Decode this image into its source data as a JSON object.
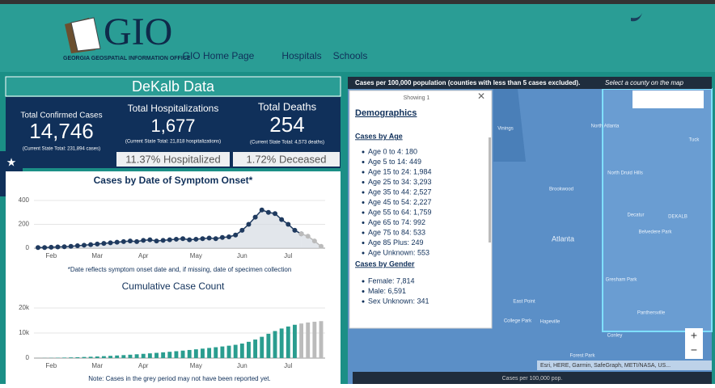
{
  "header": {
    "logo": "GIO",
    "logo_subtitle": "GEORGIA GEOSPATIAL INFORMATION OFFICE",
    "nav": [
      "GIO Home Page",
      "Hospitals",
      "Schools"
    ]
  },
  "panel": {
    "title": "DeKalb Data",
    "stats": [
      {
        "label": "Total Confirmed Cases",
        "value": "14,746",
        "note": "(Current State Total: 231,894 cases)"
      },
      {
        "label": "Total Hospitalizations",
        "value": "1,677",
        "note": "(Current State Total: 21,818 hospitalizations)"
      },
      {
        "label": "Total Deaths",
        "value": "254",
        "note": "(Current State Total: 4,573 deaths)"
      }
    ],
    "rates": [
      "11.37% Hospitalized",
      "1.72% Deceased"
    ]
  },
  "chart_data": [
    {
      "type": "line",
      "title": "Cases by Date of Symptom Onset*",
      "footnote": "*Date reflects symptom onset date and, if missing, date of specimen collection",
      "categories": [
        null,
        null,
        "Feb",
        null,
        null,
        null,
        null,
        null,
        null,
        "Mar",
        null,
        null,
        null,
        null,
        null,
        null,
        "Apr",
        null,
        null,
        null,
        null,
        null,
        null,
        null,
        "May",
        null,
        null,
        null,
        null,
        null,
        null,
        "Jun",
        null,
        null,
        null,
        null,
        null,
        null,
        "Jul",
        null,
        null,
        null,
        null,
        null
      ],
      "series": [
        {
          "color": "#1f3a5f",
          "values": [
            5,
            5,
            8,
            10,
            12,
            15,
            20,
            25,
            30,
            35,
            40,
            45,
            50,
            55,
            60,
            55,
            65,
            70,
            60,
            65,
            70,
            75,
            80,
            70,
            75,
            80,
            85,
            80,
            90,
            95,
            110,
            150,
            200,
            260,
            320,
            300,
            290,
            240,
            200,
            150,
            120,
            null,
            null,
            null
          ]
        },
        {
          "color": "#bbbbbb",
          "values": [
            null,
            null,
            null,
            null,
            null,
            null,
            null,
            null,
            null,
            null,
            null,
            null,
            null,
            null,
            null,
            null,
            null,
            null,
            null,
            null,
            null,
            null,
            null,
            null,
            null,
            null,
            null,
            null,
            null,
            null,
            null,
            null,
            null,
            null,
            null,
            null,
            null,
            null,
            null,
            null,
            120,
            100,
            60,
            15
          ]
        }
      ],
      "ylim": [
        0,
        400
      ],
      "yticks": [
        0,
        200,
        400
      ]
    },
    {
      "type": "bar",
      "title": "Cumulative Case Count",
      "footnote": "Note: Cases in the grey period may not have been reported yet.",
      "categories": [
        null,
        null,
        "Feb",
        null,
        null,
        null,
        null,
        null,
        null,
        "Mar",
        null,
        null,
        null,
        null,
        null,
        null,
        "Apr",
        null,
        null,
        null,
        null,
        null,
        null,
        null,
        "May",
        null,
        null,
        null,
        null,
        null,
        null,
        "Jun",
        null,
        null,
        null,
        null,
        null,
        null,
        "Jul",
        null,
        null,
        null,
        null,
        null
      ],
      "series": [
        {
          "color": "#2a9d8f",
          "values": [
            20,
            50,
            90,
            140,
            200,
            270,
            350,
            440,
            540,
            650,
            770,
            900,
            1040,
            1190,
            1350,
            1520,
            1700,
            1890,
            2090,
            2300,
            2520,
            2750,
            2990,
            3240,
            3500,
            3770,
            4050,
            4340,
            4640,
            4950,
            5300,
            5800,
            6500,
            7400,
            8500,
            9700,
            10800,
            11800,
            12600,
            13300,
            null,
            null,
            null,
            null
          ]
        },
        {
          "color": "#bbbbbb",
          "values": [
            null,
            null,
            null,
            null,
            null,
            null,
            null,
            null,
            null,
            null,
            null,
            null,
            null,
            null,
            null,
            null,
            null,
            null,
            null,
            null,
            null,
            null,
            null,
            null,
            null,
            null,
            null,
            null,
            null,
            null,
            null,
            null,
            null,
            null,
            null,
            null,
            null,
            null,
            null,
            null,
            13800,
            14200,
            14500,
            14746
          ]
        }
      ],
      "ylim": [
        0,
        20000
      ],
      "yticks": [
        0,
        {
          "value": 10000,
          "label": "10k"
        },
        {
          "value": 20000,
          "label": "20k"
        }
      ]
    }
  ],
  "map": {
    "title": "Cases per 100,000 population (counties with less than 5 cases excluded).",
    "hint": "Select a county on the map",
    "places": [
      "North Atlanta",
      "North Druid Hills",
      "Brookwood",
      "Decatur",
      "DEKALB",
      "Belvedere Park",
      "Atlanta",
      "Vinings",
      "Tuck",
      "Gresham Park",
      "East Point",
      "College Park",
      "Hapeville",
      "Panthersville",
      "Conley",
      "Forest Park"
    ],
    "attribution": "Esri, HERE, Garmin, SafeGraph, METI/NASA, US...",
    "legend": "Cases per 100,000 pop."
  },
  "popup": {
    "showing": "Showing 1",
    "title": "Demographics",
    "age_heading": "Cases by Age",
    "age": [
      "Age 0 to 4: 180",
      "Age 5 to 14: 449",
      "Age 15 to 24: 1,984",
      "Age 25 to 34: 3,293",
      "Age 35 to 44: 2,527",
      "Age 45 to 54: 2,227",
      "Age 55 to 64: 1,759",
      "Age 65 to 74: 992",
      "Age 75 to 84: 533",
      "Age 85 Plus: 249",
      "Age Unknown: 553"
    ],
    "gender_heading": "Cases by Gender",
    "gender": [
      "Female: 7,814",
      "Male: 6,591",
      "Sex Unknown: 341"
    ]
  }
}
